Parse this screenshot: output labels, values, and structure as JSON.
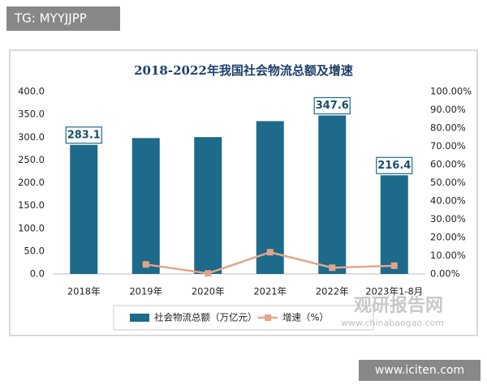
{
  "chart_data": {
    "type": "bar",
    "title": "2018-2022年我国社会物流总额及增速",
    "categories": [
      "2018年",
      "2019年",
      "2020年",
      "2021年",
      "2022年",
      "2023年1-8月"
    ],
    "series": [
      {
        "name": "社会物流总额（万亿元）",
        "type": "bar",
        "color": "#1d6a8a",
        "values": [
          283.1,
          298.0,
          300.1,
          335.2,
          347.6,
          216.4
        ],
        "show_value_label": [
          true,
          false,
          false,
          false,
          true,
          true
        ]
      },
      {
        "name": "增速（%）",
        "type": "line",
        "axis": "y2",
        "color": "#e3a58a",
        "values": [
          null,
          5.2,
          0.3,
          11.9,
          3.4,
          4.5
        ]
      }
    ],
    "ylim": [
      0,
      400
    ],
    "yticks": [
      {
        "value": 0,
        "label": "0.0"
      },
      {
        "value": 50,
        "label": "50.0"
      },
      {
        "value": 100,
        "label": "100.0"
      },
      {
        "value": 150,
        "label": "150.0"
      },
      {
        "value": 200,
        "label": "200.0"
      },
      {
        "value": 250,
        "label": "250.0"
      },
      {
        "value": 300,
        "label": "300.0"
      },
      {
        "value": 350,
        "label": "350.0"
      },
      {
        "value": 400,
        "label": "400.0"
      }
    ],
    "y2lim": [
      0,
      100
    ],
    "y2ticks": [
      {
        "value": 0,
        "label": "0.00%"
      },
      {
        "value": 10,
        "label": "10.00%"
      },
      {
        "value": 20,
        "label": "20.00%"
      },
      {
        "value": 30,
        "label": "30.00%"
      },
      {
        "value": 40,
        "label": "40.00%"
      },
      {
        "value": 50,
        "label": "50.00%"
      },
      {
        "value": 60,
        "label": "60.00%"
      },
      {
        "value": 70,
        "label": "70.00%"
      },
      {
        "value": 80,
        "label": "80.00%"
      },
      {
        "value": 90,
        "label": "90.00%"
      },
      {
        "value": 100,
        "label": "100.00%"
      }
    ],
    "grid": false,
    "legend": "bottom",
    "annotations": [
      "TG: MYYJJPP",
      "观研报告网",
      "www.chinabaogao.com",
      "www.iciten.com"
    ]
  }
}
